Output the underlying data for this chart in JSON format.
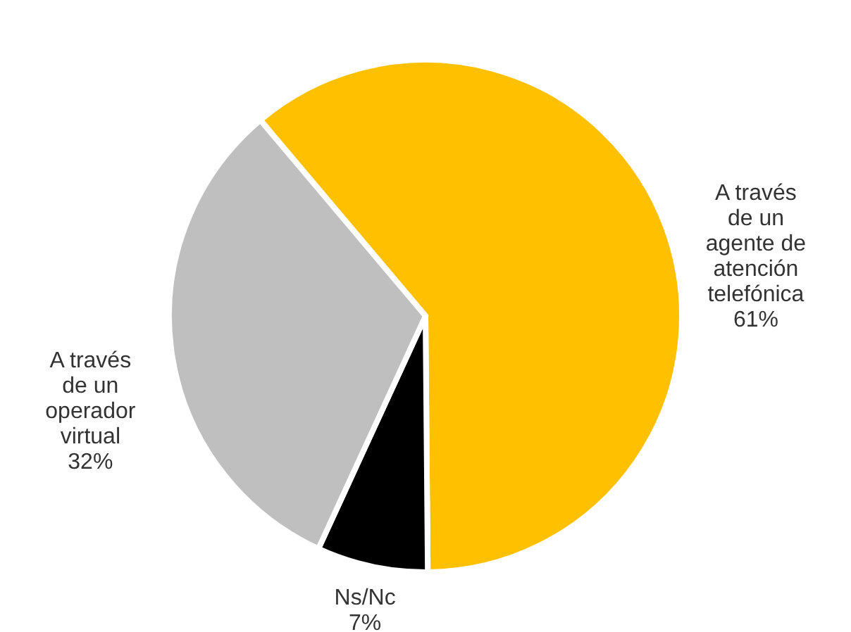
{
  "chart_data": {
    "type": "pie",
    "categories": [
      "A través de un agente de atención telefónica",
      "Ns/Nc",
      "A través de un operador virtual"
    ],
    "values": [
      61,
      7,
      32
    ],
    "colors": [
      "#ffc000",
      "#000000",
      "#bfbfbf"
    ],
    "value_labels": [
      "61%",
      "7%",
      "32%"
    ]
  }
}
